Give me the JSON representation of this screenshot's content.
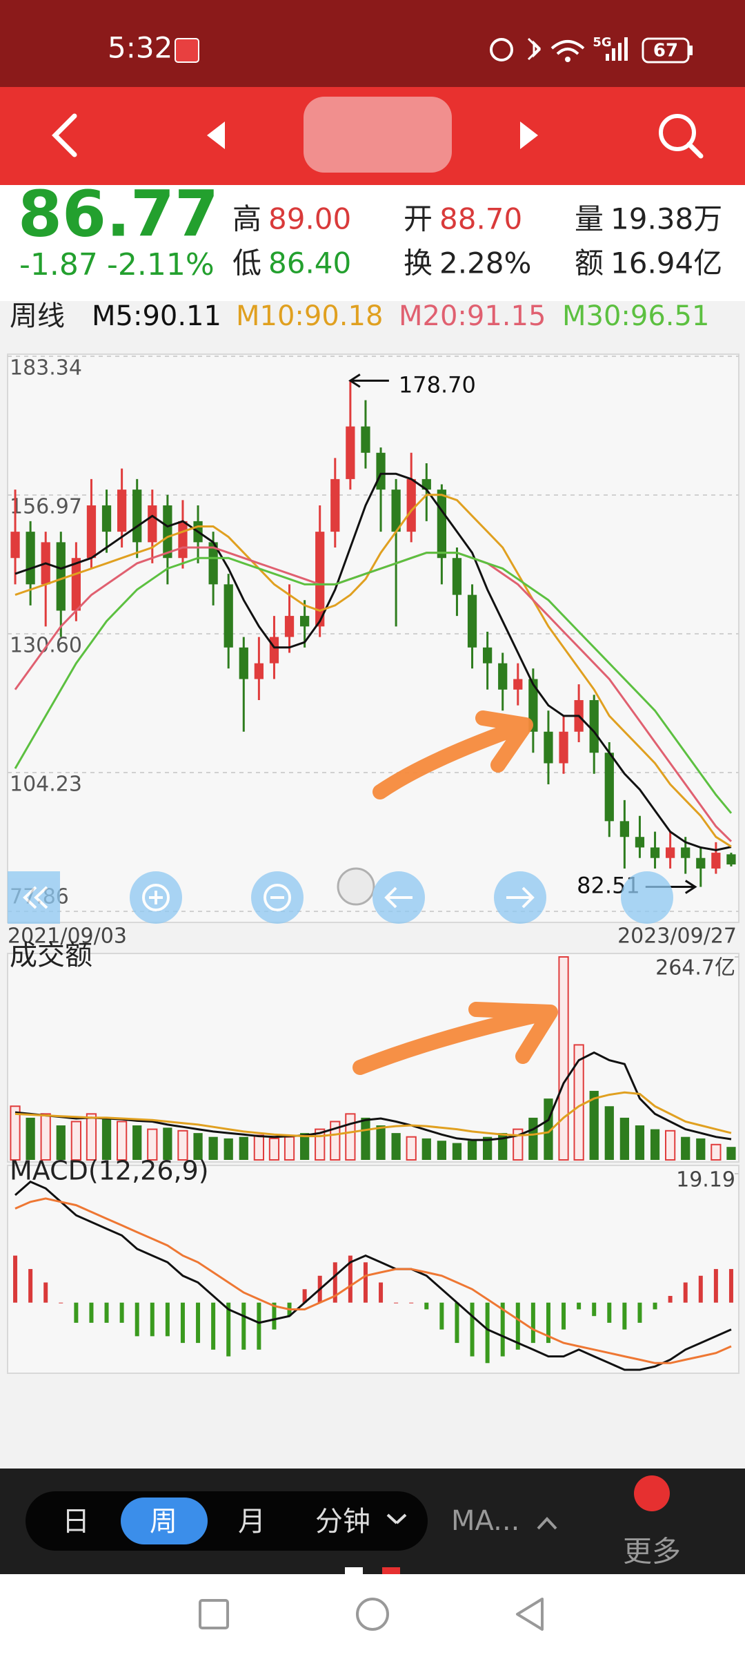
{
  "status_bar": {
    "time": "5:32",
    "network": "5G",
    "battery": "67"
  },
  "quote": {
    "price": "86.77",
    "change": "-1.87",
    "change_pct": "-2.11%",
    "stats": [
      {
        "label": "高",
        "value": "89.00",
        "color": "#d93a3a"
      },
      {
        "label": "低",
        "value": "86.40",
        "color": "#23a02e"
      },
      {
        "label": "开",
        "value": "88.70",
        "color": "#d93a3a"
      },
      {
        "label": "换",
        "value": "2.28%",
        "color": "#222222"
      },
      {
        "label": "量",
        "value": "19.38万",
        "color": "#222222"
      },
      {
        "label": "额",
        "value": "16.94亿",
        "color": "#222222"
      }
    ]
  },
  "ma_legend": {
    "period": "周线",
    "items": [
      {
        "label": "M5:90.11",
        "color": "#111111"
      },
      {
        "label": "M10:90.18",
        "color": "#e0a020"
      },
      {
        "label": "M20:91.15",
        "color": "#e06070"
      },
      {
        "label": "M30:96.51",
        "color": "#5cc040"
      }
    ]
  },
  "chart_data": [
    {
      "type": "candlestick",
      "ylim": [
        77.86,
        183.34
      ],
      "yticks": [
        183.34,
        156.97,
        {
          "value": 130.6,
          "label": "130.60"
        },
        104.23,
        77.86
      ],
      "grid": true,
      "x_labels": [
        "2021/09/03",
        "2023/09/27"
      ],
      "up_color": "#e03c3c",
      "down_color": "#2e7d1e",
      "ohlc": [
        [
          145,
          158,
          140,
          150
        ],
        [
          150,
          152,
          136,
          140
        ],
        [
          140,
          150,
          132,
          148
        ],
        [
          148,
          150,
          130,
          135
        ],
        [
          135,
          148,
          133,
          145
        ],
        [
          145,
          160,
          143,
          155
        ],
        [
          155,
          158,
          146,
          150
        ],
        [
          150,
          162,
          147,
          158
        ],
        [
          158,
          160,
          145,
          148
        ],
        [
          148,
          158,
          144,
          155
        ],
        [
          155,
          157,
          140,
          145
        ],
        [
          145,
          156,
          143,
          152
        ],
        [
          152,
          155,
          144,
          148
        ],
        [
          148,
          150,
          136,
          140
        ],
        [
          140,
          142,
          124,
          128
        ],
        [
          128,
          130,
          112,
          122
        ],
        [
          122,
          130,
          118,
          125
        ],
        [
          125,
          134,
          122,
          130
        ],
        [
          130,
          140,
          127,
          134
        ],
        [
          134,
          137,
          128,
          132
        ],
        [
          132,
          155,
          130,
          150
        ],
        [
          150,
          164,
          147,
          160
        ],
        [
          160,
          178.7,
          158,
          170
        ],
        [
          170,
          175,
          162,
          165
        ],
        [
          165,
          166,
          150,
          158
        ],
        [
          158,
          160,
          132,
          150
        ],
        [
          150,
          165,
          148,
          160
        ],
        [
          160,
          163,
          152,
          158
        ],
        [
          158,
          159,
          140,
          145
        ],
        [
          145,
          147,
          134,
          138
        ],
        [
          138,
          140,
          124,
          128
        ],
        [
          128,
          131,
          120,
          125
        ],
        [
          125,
          127,
          116,
          120
        ],
        [
          120,
          125,
          117,
          122
        ],
        [
          122,
          124,
          108,
          112
        ],
        [
          112,
          116,
          102,
          106
        ],
        [
          106,
          115,
          104,
          112
        ],
        [
          112,
          121,
          110,
          118
        ],
        [
          118,
          119,
          104,
          108
        ],
        [
          108,
          110,
          92,
          95
        ],
        [
          95,
          99,
          86,
          92
        ],
        [
          92,
          96,
          88,
          90
        ],
        [
          90,
          93,
          86,
          88
        ],
        [
          88,
          93,
          86,
          90
        ],
        [
          90,
          92,
          85,
          88
        ],
        [
          88,
          90,
          82.51,
          86
        ],
        [
          86,
          91,
          85,
          89
        ],
        [
          88.7,
          89,
          86.4,
          86.77
        ]
      ],
      "series": [
        {
          "color": "#111111",
          "values": [
            142,
            143,
            144,
            143,
            144,
            145,
            147,
            149,
            151,
            153,
            151,
            152,
            150,
            148,
            143,
            137,
            132,
            128,
            128,
            129,
            133,
            139,
            147,
            155,
            161,
            161,
            160,
            158,
            154,
            150,
            146,
            139,
            133,
            127,
            121,
            117,
            115,
            115,
            112,
            108,
            104,
            101,
            97,
            93,
            91,
            90,
            89.5,
            90.11
          ]
        },
        {
          "color": "#e0a020",
          "values": [
            138,
            139,
            140,
            141,
            142,
            143,
            144,
            145,
            146,
            147,
            149,
            150,
            151,
            151,
            149,
            146,
            143,
            140,
            138,
            136,
            135,
            136,
            138,
            141,
            146,
            150,
            154,
            157,
            157,
            156,
            153,
            150,
            147,
            142,
            137,
            132,
            128,
            124,
            120,
            115,
            112,
            109,
            106,
            102,
            99,
            96,
            92,
            90.18
          ]
        },
        {
          "color": "#e06070",
          "values": [
            120,
            124,
            128,
            132,
            135,
            138,
            140,
            142,
            144,
            145,
            146,
            147,
            147,
            147,
            146,
            145,
            144,
            143,
            142,
            141,
            140,
            140,
            141,
            142,
            143,
            144,
            145,
            146,
            146,
            146,
            145,
            144,
            142,
            140,
            137,
            134,
            131,
            128,
            125,
            122,
            118,
            114,
            110,
            106,
            102,
            98,
            94,
            91.15
          ]
        },
        {
          "color": "#5cc040",
          "values": [
            105,
            110,
            115,
            120,
            125,
            129,
            133,
            136,
            139,
            141,
            143,
            144,
            145,
            145,
            145,
            144,
            143,
            142,
            141,
            140,
            140,
            140,
            141,
            142,
            143,
            144,
            145,
            146,
            146,
            146,
            145,
            144,
            143,
            141,
            139,
            137,
            134,
            131,
            128,
            125,
            122,
            119,
            116,
            112,
            108,
            104,
            100,
            96.51
          ]
        }
      ],
      "annotations": [
        {
          "label": "178.70",
          "value": 178.7,
          "index": 22,
          "side": "right"
        },
        {
          "label": "82.51",
          "value": 82.51,
          "index": 45,
          "side": "left"
        }
      ]
    },
    {
      "type": "bar",
      "title": "成交额",
      "ylim": [
        0,
        264.7
      ],
      "yticks": [
        {
          "value": 264.7,
          "label": "264.7亿"
        }
      ],
      "values": [
        70,
        55,
        60,
        45,
        50,
        60,
        55,
        50,
        45,
        40,
        42,
        38,
        35,
        30,
        28,
        30,
        32,
        28,
        30,
        35,
        40,
        50,
        60,
        55,
        45,
        35,
        30,
        28,
        25,
        22,
        25,
        30,
        35,
        40,
        55,
        80,
        264.7,
        150,
        90,
        70,
        55,
        45,
        40,
        38,
        30,
        28,
        20,
        16.94
      ],
      "series": [
        {
          "color": "#111111",
          "values": [
            62,
            60,
            58,
            56,
            54,
            55,
            54,
            53,
            51,
            50,
            46,
            43,
            40,
            37,
            35,
            33,
            31,
            30,
            31,
            32,
            35,
            41,
            47,
            52,
            54,
            50,
            45,
            39,
            33,
            28,
            26,
            26,
            28,
            32,
            40,
            52,
            100,
            130,
            140,
            130,
            125,
            80,
            60,
            50,
            40,
            35,
            30,
            27
          ]
        },
        {
          "color": "#e0a020",
          "values": [
            60,
            59,
            58,
            57,
            56,
            55,
            55,
            54,
            53,
            52,
            50,
            48,
            46,
            43,
            40,
            37,
            35,
            33,
            32,
            31,
            31,
            33,
            36,
            39,
            42,
            44,
            45,
            44,
            42,
            40,
            37,
            35,
            33,
            32,
            33,
            36,
            55,
            70,
            80,
            85,
            88,
            86,
            70,
            60,
            50,
            45,
            40,
            35
          ]
        }
      ]
    },
    {
      "type": "macd",
      "title": "MACD(12,26,9)",
      "ylim": [
        -10.1,
        19.19
      ],
      "yticks": [
        19.19
      ],
      "up_color": "#d93a3a",
      "down_color": "#3a9a1e",
      "values": [
        7,
        5,
        3,
        0,
        -3,
        -3,
        -3,
        -3,
        -5,
        -5,
        -5,
        -6,
        -6,
        -7,
        -8,
        -7,
        -7,
        -4,
        -2,
        2,
        4,
        6,
        7,
        6,
        3,
        0,
        0,
        -1,
        -4,
        -6,
        -8,
        -9,
        -8,
        -7,
        -6,
        -6,
        -4,
        -1,
        -2,
        -3,
        -4,
        -3,
        -1,
        1,
        3,
        4,
        5,
        5
      ],
      "series": [
        {
          "color": "#111111",
          "values": [
            16,
            18,
            17,
            15,
            13,
            12,
            11,
            10,
            8,
            7,
            6,
            4,
            3,
            1,
            -1,
            -2,
            -3,
            -2.5,
            -2,
            0,
            2,
            4,
            6,
            7,
            6,
            5,
            5,
            4,
            2,
            0,
            -2,
            -4,
            -5,
            -6,
            -7,
            -8,
            -8,
            -7,
            -8,
            -9,
            -10,
            -10,
            -9.5,
            -8.5,
            -7,
            -6,
            -5,
            -4
          ]
        },
        {
          "color": "#ee7733",
          "values": [
            14,
            15,
            15.5,
            15,
            14.5,
            13.5,
            12.5,
            11.5,
            10.5,
            9.5,
            8.5,
            7,
            6,
            4.5,
            3,
            1.5,
            0.5,
            -0.5,
            -1,
            -1,
            0,
            1,
            2.5,
            4,
            4.5,
            5,
            5,
            4.5,
            4,
            3,
            2,
            0.5,
            -1,
            -2.5,
            -4,
            -5,
            -6,
            -6.5,
            -7,
            -7.5,
            -8,
            -8.5,
            -9,
            -9,
            -8.5,
            -8,
            -7.5,
            -6.5
          ]
        }
      ]
    }
  ],
  "toolbar": {
    "tabs": [
      "日",
      "周",
      "月",
      "分钟"
    ],
    "active": 1,
    "ma": "MA...",
    "more": "更多"
  }
}
